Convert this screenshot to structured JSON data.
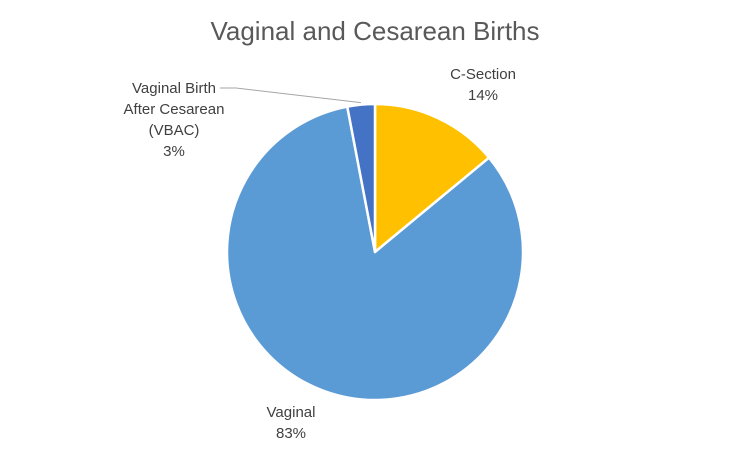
{
  "chart_data": {
    "type": "pie",
    "title": "Vaginal and Cesarean Births",
    "slices": [
      {
        "label": "C-Section",
        "value": 14,
        "value_label": "14%",
        "color": "#FFC000"
      },
      {
        "label": "Vaginal",
        "value": 83,
        "value_label": "83%",
        "color": "#5B9BD5"
      },
      {
        "label": "Vaginal Birth After Cesarean (VBAC)",
        "label_lines": [
          "Vaginal Birth",
          "After Cesarean",
          "(VBAC)"
        ],
        "value": 3,
        "value_label": "3%",
        "color": "#4472C4"
      }
    ],
    "start_angle_deg": 0,
    "direction": "clockwise",
    "legend": "none"
  }
}
